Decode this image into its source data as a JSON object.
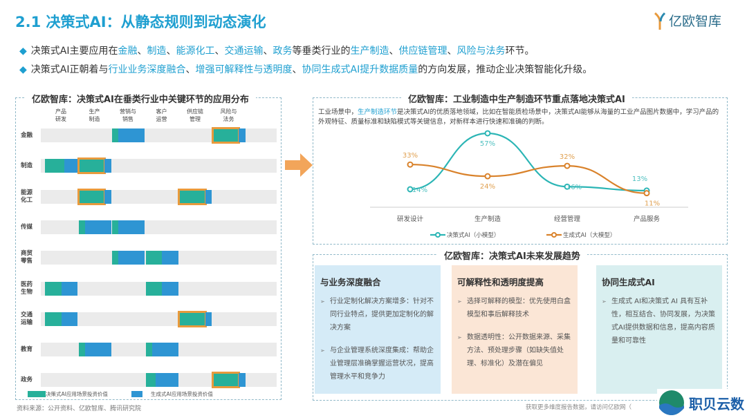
{
  "header": {
    "title": "2.1 决策式AI：从静态规则到动态演化",
    "logo": "亿欧智库"
  },
  "bullets": [
    [
      {
        "t": "决策式AI主要应用在"
      },
      {
        "t": "金融",
        "h": 1
      },
      {
        "t": "、"
      },
      {
        "t": "制造",
        "h": 1
      },
      {
        "t": "、"
      },
      {
        "t": "能源化工",
        "h": 1
      },
      {
        "t": "、"
      },
      {
        "t": "交通运输",
        "h": 1
      },
      {
        "t": "、"
      },
      {
        "t": "政务",
        "h": 1
      },
      {
        "t": "等垂类行业的"
      },
      {
        "t": "生产制造",
        "h": 1
      },
      {
        "t": "、"
      },
      {
        "t": "供应链管理",
        "h": 1
      },
      {
        "t": "、"
      },
      {
        "t": "风险与法务",
        "h": 1
      },
      {
        "t": "环节。"
      }
    ],
    [
      {
        "t": "决策式AI正朝着与"
      },
      {
        "t": "行业业务深度融合",
        "h": 1
      },
      {
        "t": "、"
      },
      {
        "t": "增强可解释性与透明度",
        "h": 1
      },
      {
        "t": "、"
      },
      {
        "t": "协同生成式AI提升数据质量",
        "h": 1
      },
      {
        "t": "的方向发展，推动企业决策智能化升级。"
      }
    ]
  ],
  "left_chart": {
    "title": "亿欧智库：决策式AI在垂类行业中关键环节的应用分布",
    "columns": [
      "产品\n研发",
      "生产\n制造",
      "营销与\n销售",
      "客户\n运营",
      "供应链\n管理",
      "风险与\n法务"
    ],
    "rows": [
      {
        "label": "金融",
        "segs": [
          [
            2,
            0.2,
            0
          ],
          [
            5,
            0.8,
            1
          ]
        ]
      },
      {
        "label": "制造",
        "segs": [
          [
            0,
            0.6,
            0
          ],
          [
            1,
            0.8,
            1
          ]
        ]
      },
      {
        "label": "能源\n化工",
        "segs": [
          [
            1,
            0.8,
            1
          ],
          [
            4,
            0.8,
            1
          ]
        ]
      },
      {
        "label": "传媒",
        "segs": [
          [
            1,
            0.2,
            0
          ],
          [
            2,
            0.2,
            0
          ]
        ]
      },
      {
        "label": "商贸\n零售",
        "segs": [
          [
            2,
            0.2,
            0
          ],
          [
            3,
            0.5,
            0
          ]
        ]
      },
      {
        "label": "医药\n生物",
        "segs": [
          [
            0,
            0.5,
            0
          ],
          [
            3,
            0.5,
            0
          ]
        ]
      },
      {
        "label": "交通\n运输",
        "segs": [
          [
            0,
            0.5,
            0
          ],
          [
            4,
            0.8,
            1
          ]
        ]
      },
      {
        "label": "教育",
        "segs": [
          [
            1,
            0.2,
            0
          ],
          [
            3,
            0.2,
            0
          ]
        ]
      },
      {
        "label": "政务",
        "segs": [
          [
            3,
            0.3,
            0
          ],
          [
            5,
            0.8,
            1
          ]
        ]
      }
    ],
    "legend": [
      "决策式AI应用场景投资价值",
      "生成式AI应用场景投资价值"
    ],
    "colors": {
      "decision": "#27b09a",
      "generative": "#2e95d3",
      "highlight": "#e89a3c"
    }
  },
  "source": "资料来源：公开资料、亿欧智库、腾讯研究院",
  "chart_data": {
    "type": "line",
    "title": "亿欧智库：工业制造中生产制造环节重点落地决策式AI",
    "categories": [
      "研发设计",
      "生产制造",
      "经营管理",
      "产品服务"
    ],
    "series": [
      {
        "name": "决策式AI（小模型）",
        "values": [
          14,
          57,
          16,
          13
        ],
        "color": "#2bb5b5"
      },
      {
        "name": "生成式AI（大模型）",
        "values": [
          33,
          24,
          32,
          11
        ],
        "color": "#d9822b"
      }
    ],
    "unit": "%"
  },
  "line_desc": {
    "pre": "工业场景中，",
    "hl": "生产制造环节",
    "post": "是决策式AI的优质落地领域，比如在智能质检场景中，决策式AI能够从海量的工业产品图片数据中，学习产品的外观特征、质量标准和缺陷模式等关键信息，对新样本进行快速和准确的判断。"
  },
  "trends": {
    "title": "亿欧智库：决策式AI未来发展趋势",
    "cards": [
      {
        "title": "与业务深度融合",
        "items": [
          "行业定制化解决方案增多：针对不同行业特点，提供更加定制化的解决方案",
          "与企业管理系统深度集成：帮助企业管理层准确掌握运营状况，提高管理水平和竞争力"
        ],
        "bg": "#d5ebf7"
      },
      {
        "title": "可解释性和透明度提高",
        "items": [
          "选择可解释的模型：优先使用白盒模型和事后解释技术",
          "数据透明性：公开数据来源、采集方法、预处理步骤（如缺失值处理、标准化）及潜在偏见"
        ],
        "bg": "#fbe6d6"
      },
      {
        "title": "协同生成式AI",
        "items": [
          "生成式 AI和决策式 AI 具有互补性，相互结合、协同发展，为决策式AI提供数据和信息，提高内容质量和可靠性"
        ],
        "bg": "#d9eff0"
      }
    ]
  },
  "footer": {
    "note": "获取更多维度报告数据，请访问亿欧网（",
    "brand": "职贝云数"
  }
}
